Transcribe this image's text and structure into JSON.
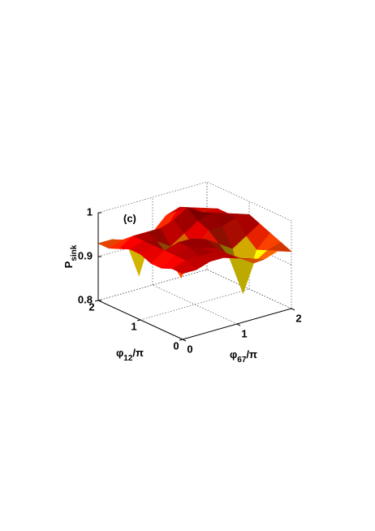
{
  "chart_data": {
    "type": "surface",
    "annotation": "(c)",
    "xlabel": {
      "symbol": "φ",
      "subscript": "67",
      "suffix": "/π"
    },
    "ylabel": {
      "symbol": "φ",
      "subscript": "12",
      "suffix": "/π"
    },
    "zlabel": {
      "symbol": "P",
      "subscript": "sink"
    },
    "x": [
      0,
      0.25,
      0.5,
      0.75,
      1,
      1.25,
      1.5,
      1.75,
      2
    ],
    "y": [
      0,
      0.25,
      0.5,
      0.75,
      1,
      1.25,
      1.5,
      1.75,
      2
    ],
    "z": [
      [
        0.95,
        0.95,
        0.96,
        0.96,
        0.95,
        0.94,
        0.93,
        0.94,
        0.93
      ],
      [
        0.95,
        0.96,
        0.96,
        0.96,
        0.95,
        0.93,
        0.91,
        0.93,
        0.94
      ],
      [
        0.94,
        0.96,
        0.97,
        0.96,
        0.95,
        0.92,
        0.83,
        0.92,
        0.95
      ],
      [
        0.94,
        0.96,
        0.97,
        0.97,
        0.96,
        0.94,
        0.92,
        0.94,
        0.96
      ],
      [
        0.95,
        0.96,
        0.93,
        0.87,
        0.93,
        0.96,
        0.96,
        0.97,
        0.97
      ],
      [
        0.95,
        0.96,
        0.95,
        0.93,
        0.95,
        0.97,
        0.98,
        0.97,
        0.96
      ],
      [
        0.94,
        0.96,
        0.96,
        0.96,
        0.97,
        0.99,
        0.97,
        0.96,
        0.95
      ],
      [
        0.93,
        0.94,
        0.93,
        0.92,
        0.93,
        0.97,
        0.96,
        0.95,
        0.95
      ],
      [
        0.93,
        0.93,
        0.92,
        0.83,
        0.92,
        0.95,
        0.96,
        0.95,
        0.94
      ]
    ],
    "xlim": [
      0,
      2
    ],
    "xticks": [
      0,
      1,
      2
    ],
    "ylim": [
      0,
      2
    ],
    "yticks": [
      0,
      1,
      2
    ],
    "zlim": [
      0.8,
      1
    ],
    "zticks": [
      0.8,
      0.9,
      1
    ],
    "grid": true,
    "colormap": "jet"
  }
}
